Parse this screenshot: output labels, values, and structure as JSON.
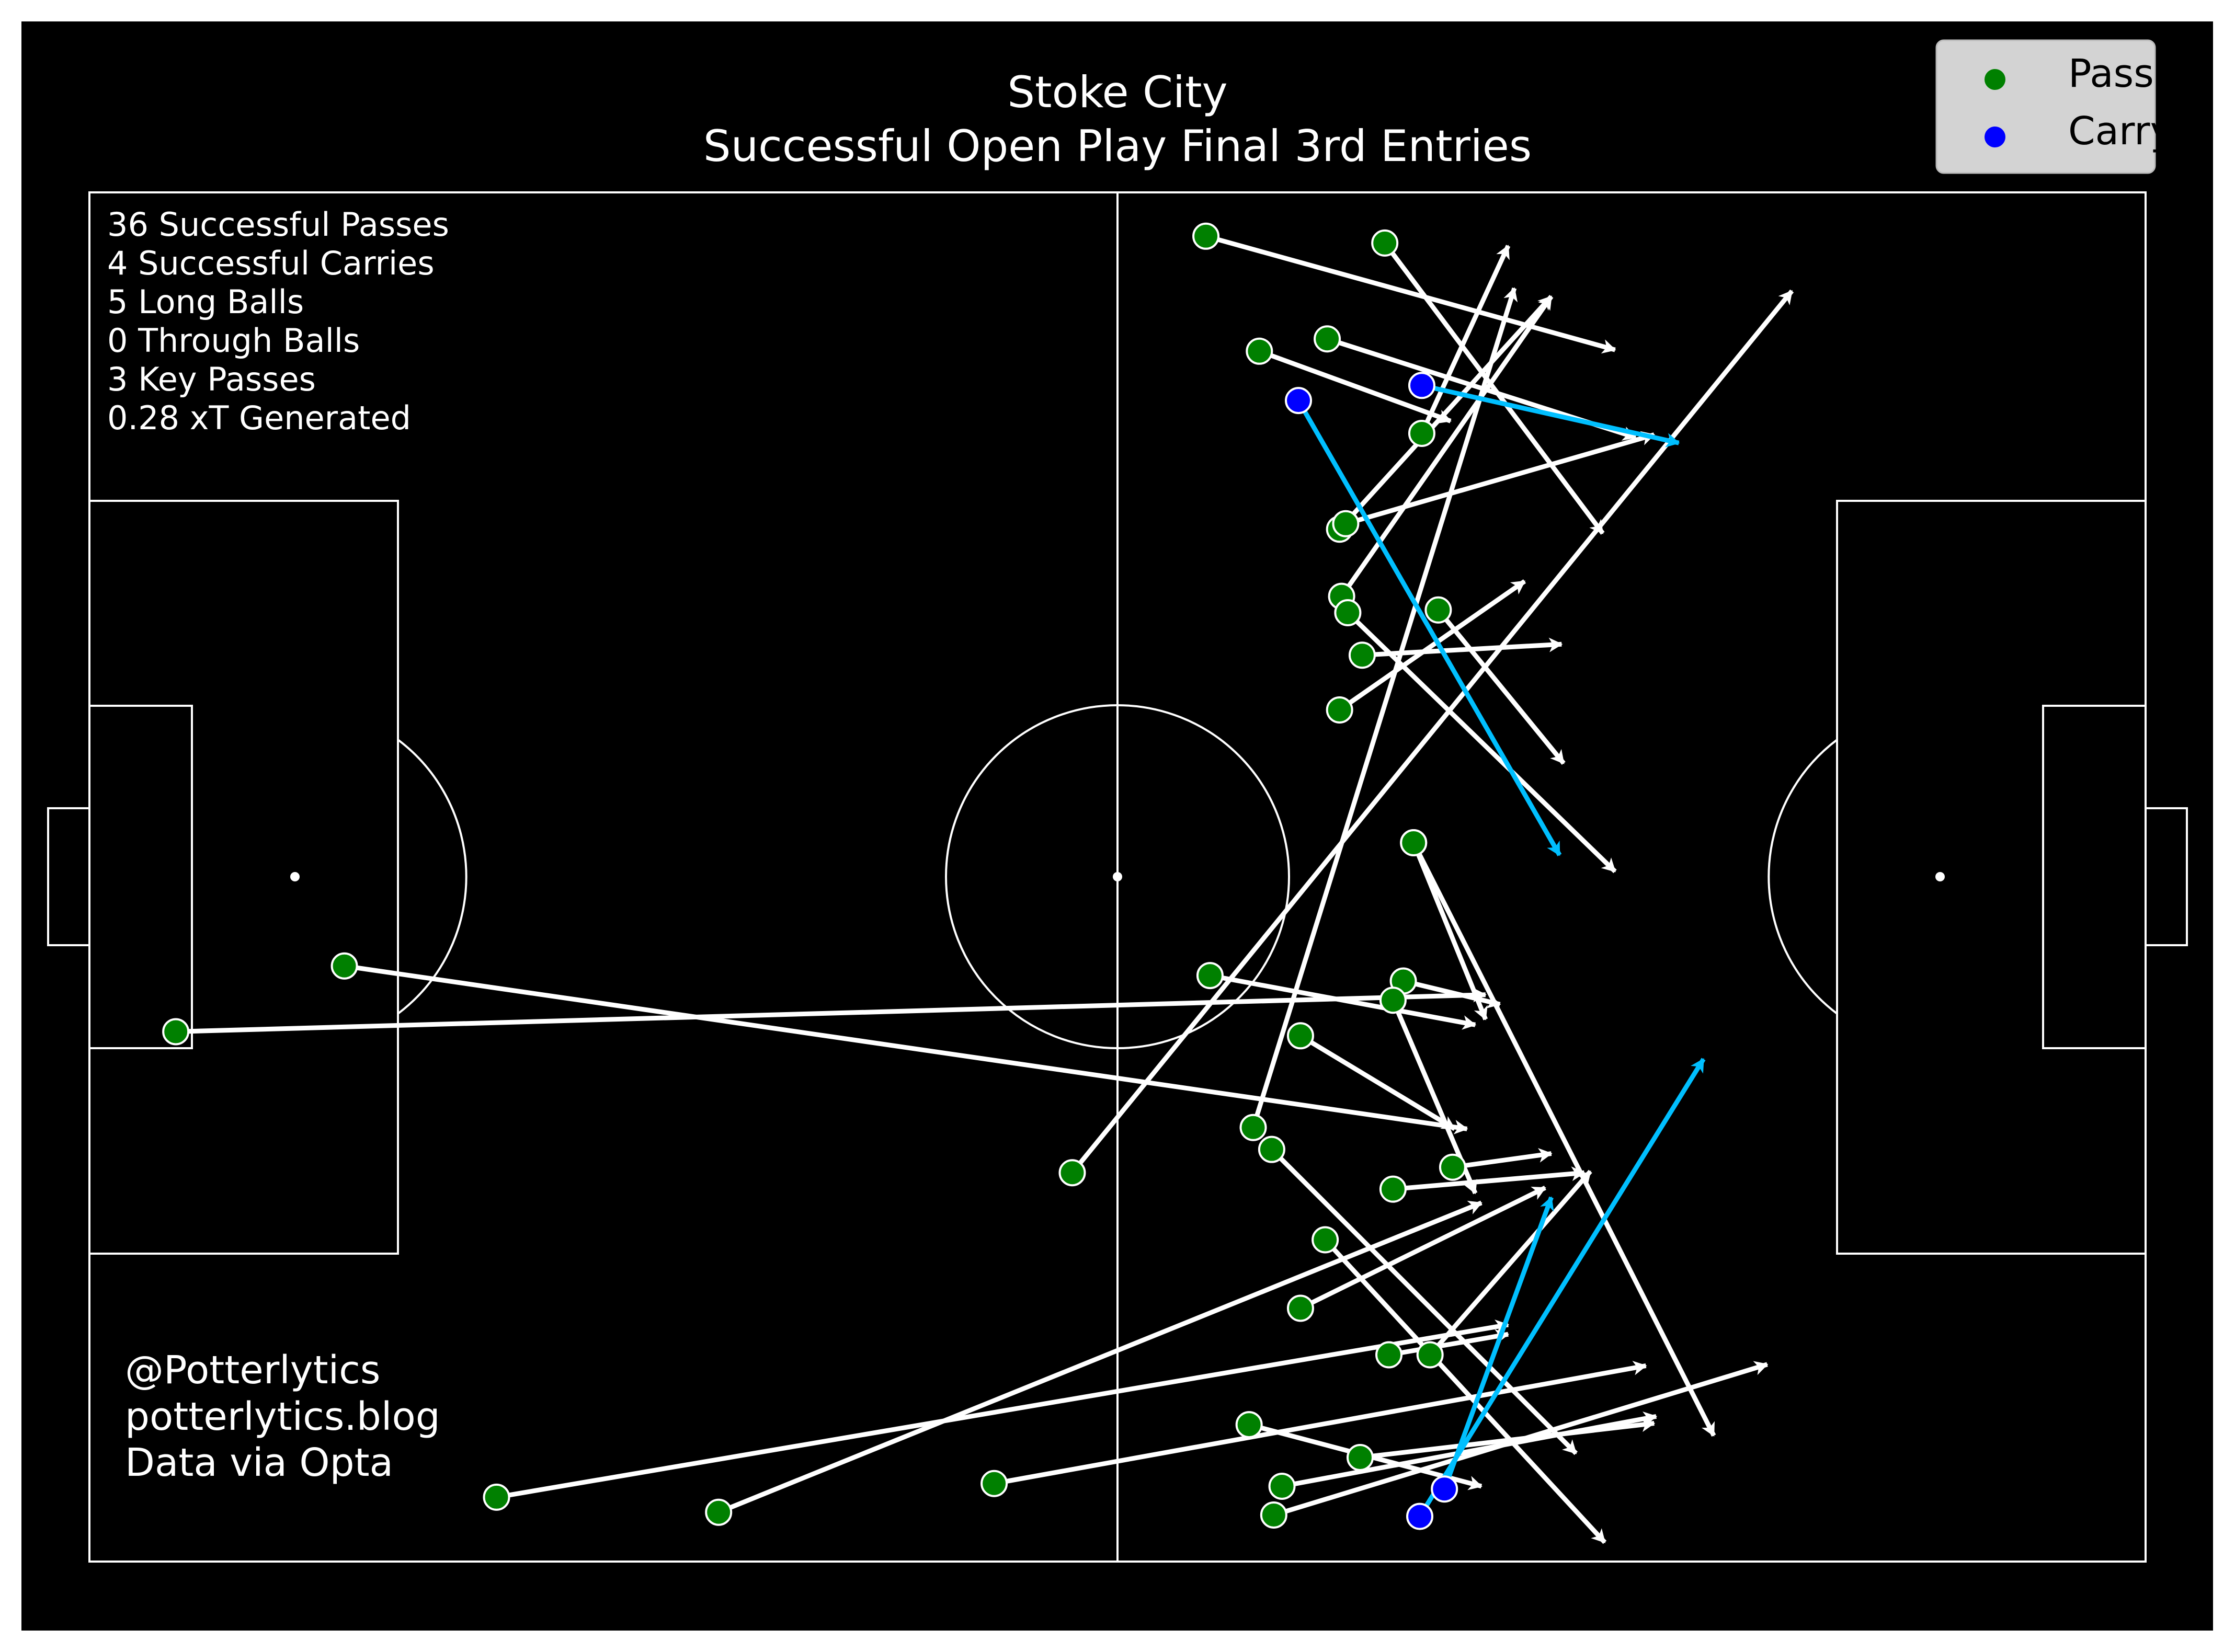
{
  "title": "Stoke City",
  "subtitle": "Successful Open Play Final 3rd Entries",
  "stats": [
    "36 Successful Passes",
    "4 Successful Carries",
    "5 Long Balls",
    "0 Through Balls",
    "3 Key Passes",
    "0.28 xT Generated"
  ],
  "credits": [
    "@Potterlytics",
    "potterlytics.blog",
    "Data via Opta"
  ],
  "legend": {
    "pass_label": "Pass",
    "carry_label": "Carry"
  },
  "colors": {
    "background": "#000000",
    "pitch_lines": "#ffffff",
    "pass_marker": "#008000",
    "carry_marker": "#0000ff",
    "pass_arrow": "#ffffff",
    "carry_arrow": "#00bfff",
    "legend_bg": "#d3d3d3"
  },
  "chart_data": {
    "type": "scatter",
    "x_unit": "opta pitch units 0-100 (attacking left to right)",
    "y_unit": "opta pitch units 0-100 (0 = top touchline)",
    "xlim": [
      0,
      100
    ],
    "ylim": [
      0,
      100
    ],
    "series": [
      {
        "name": "Pass",
        "events": [
          {
            "x": 54.3,
            "y": 3.2,
            "end_x": 74.2,
            "end_y": 11.5
          },
          {
            "x": 63.0,
            "y": 3.7,
            "end_x": 73.6,
            "end_y": 24.9
          },
          {
            "x": 56.9,
            "y": 11.6,
            "end_x": 66.2,
            "end_y": 16.7
          },
          {
            "x": 60.2,
            "y": 10.7,
            "end_x": 75.2,
            "end_y": 17.9
          },
          {
            "x": 64.8,
            "y": 17.6,
            "end_x": 69.0,
            "end_y": 3.9
          },
          {
            "x": 60.8,
            "y": 24.6,
            "end_x": 71.1,
            "end_y": 7.6
          },
          {
            "x": 61.1,
            "y": 24.2,
            "end_x": 76.1,
            "end_y": 17.7
          },
          {
            "x": 60.9,
            "y": 29.5,
            "end_x": 71.1,
            "end_y": 7.6
          },
          {
            "x": 61.2,
            "y": 30.7,
            "end_x": 74.2,
            "end_y": 49.6
          },
          {
            "x": 65.6,
            "y": 30.5,
            "end_x": 71.7,
            "end_y": 41.7
          },
          {
            "x": 61.9,
            "y": 33.8,
            "end_x": 71.6,
            "end_y": 33.0
          },
          {
            "x": 60.8,
            "y": 37.8,
            "end_x": 69.8,
            "end_y": 28.4
          },
          {
            "x": 64.4,
            "y": 47.5,
            "end_x": 67.9,
            "end_y": 60.4
          },
          {
            "x": 64.4,
            "y": 47.5,
            "end_x": 79.0,
            "end_y": 90.8
          },
          {
            "x": 54.5,
            "y": 57.2,
            "end_x": 67.4,
            "end_y": 60.8
          },
          {
            "x": 63.9,
            "y": 57.6,
            "end_x": 68.6,
            "end_y": 59.3
          },
          {
            "x": 63.4,
            "y": 59.0,
            "end_x": 67.4,
            "end_y": 73.1
          },
          {
            "x": 58.9,
            "y": 61.6,
            "end_x": 66.4,
            "end_y": 68.4
          },
          {
            "x": 56.6,
            "y": 68.3,
            "end_x": 69.3,
            "end_y": 7.0
          },
          {
            "x": 57.5,
            "y": 69.9,
            "end_x": 72.3,
            "end_y": 92.1
          },
          {
            "x": 47.8,
            "y": 71.6,
            "end_x": 82.8,
            "end_y": 7.2
          },
          {
            "x": 66.3,
            "y": 71.2,
            "end_x": 71.1,
            "end_y": 70.2
          },
          {
            "x": 63.4,
            "y": 72.8,
            "end_x": 72.7,
            "end_y": 71.6
          },
          {
            "x": 60.1,
            "y": 76.5,
            "end_x": 73.7,
            "end_y": 98.6
          },
          {
            "x": 58.9,
            "y": 81.5,
            "end_x": 70.8,
            "end_y": 72.7
          },
          {
            "x": 63.2,
            "y": 84.9,
            "end_x": 69.0,
            "end_y": 83.4
          },
          {
            "x": 65.2,
            "y": 84.9,
            "end_x": 73.0,
            "end_y": 71.5
          },
          {
            "x": 56.4,
            "y": 90.0,
            "end_x": 67.7,
            "end_y": 94.5
          },
          {
            "x": 61.8,
            "y": 92.4,
            "end_x": 76.1,
            "end_y": 89.9
          },
          {
            "x": 58.0,
            "y": 94.5,
            "end_x": 76.2,
            "end_y": 89.4
          },
          {
            "x": 57.6,
            "y": 96.6,
            "end_x": 81.6,
            "end_y": 85.6
          },
          {
            "x": 44.0,
            "y": 94.3,
            "end_x": 75.7,
            "end_y": 85.7
          },
          {
            "x": 30.6,
            "y": 96.4,
            "end_x": 67.7,
            "end_y": 73.8
          },
          {
            "x": 19.8,
            "y": 95.3,
            "end_x": 69.0,
            "end_y": 82.7
          },
          {
            "x": 12.4,
            "y": 56.5,
            "end_x": 67.0,
            "end_y": 68.4
          },
          {
            "x": 4.2,
            "y": 61.3,
            "end_x": 67.9,
            "end_y": 58.6
          }
        ]
      },
      {
        "name": "Carry",
        "events": [
          {
            "x": 58.8,
            "y": 15.2,
            "end_x": 71.5,
            "end_y": 48.4
          },
          {
            "x": 64.8,
            "y": 14.1,
            "end_x": 77.3,
            "end_y": 18.3
          },
          {
            "x": 65.9,
            "y": 94.7,
            "end_x": 71.1,
            "end_y": 73.4
          },
          {
            "x": 64.7,
            "y": 96.7,
            "end_x": 78.5,
            "end_y": 63.3
          }
        ]
      }
    ]
  }
}
